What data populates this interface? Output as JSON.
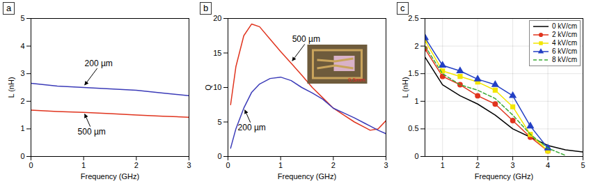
{
  "chart_data": [
    {
      "type": "line",
      "title": "a",
      "x_label": "Frequency (GHz)",
      "y_label": "L (nH)",
      "x": [
        0,
        0.5,
        1,
        1.5,
        2,
        2.5,
        3
      ],
      "xlim": [
        0,
        3
      ],
      "xticks": [
        0,
        1,
        2,
        3
      ],
      "ylim": [
        0,
        5
      ],
      "yticks": [
        0,
        1,
        2,
        3,
        4,
        5
      ],
      "grid": false,
      "series": [
        {
          "name": "200 µm",
          "color": "#3b3bb8",
          "label_x": 1,
          "values": [
            2.65,
            2.55,
            2.5,
            2.45,
            2.4,
            2.3,
            2.2
          ]
        },
        {
          "name": "500 µm",
          "color": "#e0341e",
          "label_x": 1,
          "values": [
            1.68,
            1.63,
            1.6,
            1.55,
            1.5,
            1.46,
            1.42
          ]
        }
      ]
    },
    {
      "type": "line",
      "title": "b",
      "x_label": "Frequency (GHz)",
      "y_label": "Q",
      "inset_text": "0.5mm",
      "x": [
        0.05,
        0.15,
        0.3,
        0.45,
        0.6,
        0.8,
        1.0,
        1.2,
        1.4,
        1.6,
        1.8,
        2.0,
        2.2,
        2.4,
        2.6,
        2.7,
        2.85,
        3.0
      ],
      "xlim": [
        0,
        3
      ],
      "xticks": [
        0,
        1,
        2,
        3
      ],
      "ylim": [
        0,
        20
      ],
      "yticks": [
        0,
        5,
        10,
        15,
        20
      ],
      "grid": false,
      "series": [
        {
          "name": "500 µm",
          "color": "#e0341e",
          "label_x": 1.2,
          "values": [
            7.5,
            13,
            17.5,
            19.2,
            18.8,
            17,
            15.2,
            13.5,
            11.8,
            10,
            8.5,
            7,
            6,
            5,
            4.2,
            3.8,
            4,
            5.2
          ]
        },
        {
          "name": "200 µm",
          "color": "#3b3bb8",
          "label_x": 0.3,
          "values": [
            1.2,
            4,
            7,
            9.3,
            10.5,
            11.3,
            11.5,
            11,
            10,
            9.2,
            8.3,
            7,
            6.3,
            5.6,
            4.8,
            4.4,
            3.8,
            3.3
          ]
        }
      ]
    },
    {
      "type": "line",
      "title": "c",
      "x_label": "Frequency (GHz)",
      "y_label": "L (nH)",
      "x": [
        0.5,
        1,
        1.5,
        2,
        2.5,
        3,
        3.5,
        4,
        4.5,
        5
      ],
      "xlim": [
        0.5,
        5
      ],
      "xticks": [
        1,
        2,
        3,
        4,
        5
      ],
      "ylim": [
        0,
        2.5
      ],
      "yticks": [
        0,
        0.5,
        1,
        1.5,
        2,
        2.5
      ],
      "grid": true,
      "legend": "upper right",
      "series": [
        {
          "name": "0 kV/cm",
          "color": "#000000",
          "line_style": "solid",
          "values": [
            1.8,
            1.3,
            1.1,
            0.95,
            0.75,
            0.5,
            0.35,
            0.2,
            0.12,
            0.08
          ]
        },
        {
          "name": "2 kV/cm",
          "color": "#e0341e",
          "marker": "circle",
          "line_style": "solid",
          "values": [
            1.95,
            1.45,
            1.3,
            1.1,
            0.95,
            0.65,
            0.35,
            0.1,
            null,
            null
          ]
        },
        {
          "name": "4 kV/cm",
          "color": "#f2e600",
          "marker": "square",
          "line_style": "solid",
          "values": [
            2.1,
            1.55,
            1.45,
            1.35,
            1.2,
            0.9,
            0.4,
            0.1,
            null,
            null
          ]
        },
        {
          "name": "6 kV/cm",
          "color": "#2340c4",
          "marker": "triangle",
          "line_style": "solid",
          "values": [
            2.15,
            1.65,
            1.55,
            1.4,
            1.3,
            1.1,
            0.55,
            0.15,
            null,
            null
          ]
        },
        {
          "name": "8 kV/cm",
          "color": "#3aaa35",
          "line_style": "dashed",
          "values": [
            2.0,
            1.5,
            1.3,
            1.2,
            1.05,
            0.75,
            0.4,
            0.15,
            0.02,
            null
          ]
        }
      ]
    }
  ]
}
